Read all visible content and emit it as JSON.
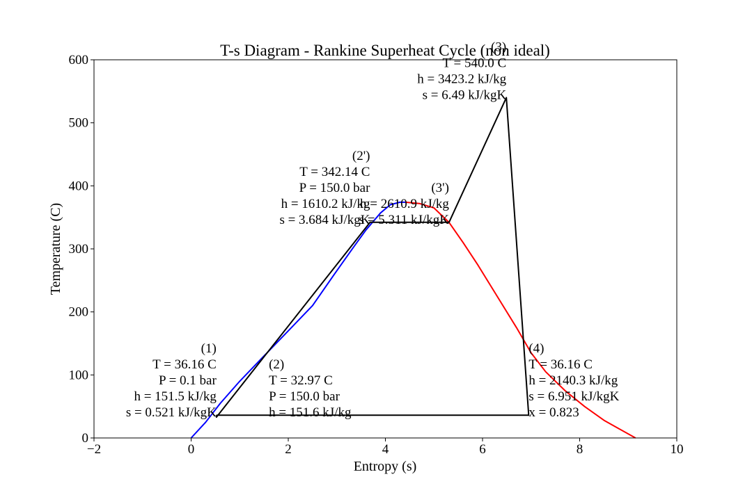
{
  "chart_data": {
    "type": "line",
    "title": "T-s Diagram - Rankine Superheat Cycle (non ideal)",
    "xlabel": "Entropy (s)",
    "ylabel": "Temperature (C)",
    "xlim": [
      -2,
      10
    ],
    "ylim": [
      0,
      600
    ],
    "xticks": [
      -2,
      0,
      2,
      4,
      6,
      8,
      10
    ],
    "yticks": [
      0,
      100,
      200,
      300,
      400,
      500,
      600
    ],
    "grid": false,
    "colors": {
      "liquid": "#0000ff",
      "vapor": "#ff0000",
      "cycle": "#000000"
    },
    "series": [
      {
        "role": "saturated-liquid",
        "color": "#0000ff",
        "points": [
          [
            0.0,
            0
          ],
          [
            0.3,
            25
          ],
          [
            0.6,
            55
          ],
          [
            1.0,
            90
          ],
          [
            1.5,
            130
          ],
          [
            2.0,
            170
          ],
          [
            2.5,
            210
          ],
          [
            2.95,
            260
          ],
          [
            3.3,
            298
          ],
          [
            3.6,
            330
          ],
          [
            3.9,
            357
          ],
          [
            4.1,
            370
          ],
          [
            4.3,
            374
          ],
          [
            4.41,
            374
          ]
        ]
      },
      {
        "role": "saturated-vapor",
        "color": "#ff0000",
        "points": [
          [
            4.41,
            374
          ],
          [
            4.7,
            372
          ],
          [
            5.0,
            365
          ],
          [
            5.311,
            342
          ],
          [
            5.6,
            310
          ],
          [
            5.9,
            275
          ],
          [
            6.3,
            225
          ],
          [
            6.7,
            175
          ],
          [
            7.0,
            135
          ],
          [
            7.3,
            105
          ],
          [
            7.7,
            75
          ],
          [
            8.1,
            50
          ],
          [
            8.5,
            28
          ],
          [
            8.8,
            15
          ],
          [
            9.15,
            0
          ]
        ]
      },
      {
        "role": "cycle",
        "color": "#000000",
        "points": [
          [
            0.521,
            36.16
          ],
          [
            0.521,
            32.97
          ],
          [
            3.684,
            342.14
          ],
          [
            5.311,
            342.14
          ],
          [
            6.49,
            540.0
          ],
          [
            6.951,
            36.16
          ],
          [
            0.521,
            36.16
          ]
        ]
      }
    ],
    "annotations": [
      {
        "id": "state-1",
        "x": 0.521,
        "y": 36.16,
        "align": "right",
        "lines": [
          "(1)",
          "T = 36.16 C",
          "P = 0.1 bar",
          "h = 151.5 kJ/kg",
          "s = 0.521 kJ/kgK"
        ]
      },
      {
        "id": "state-2",
        "x": 1.6,
        "y": 36.16,
        "align": "left",
        "lines": [
          "(2)",
          "T = 32.97 C",
          "P = 150.0 bar",
          "h = 151.6 kJ/kg"
        ]
      },
      {
        "id": "state-2p",
        "x": 3.684,
        "y": 342.14,
        "align": "right",
        "lines": [
          "(2')",
          "T = 342.14 C",
          "P = 150.0 bar",
          "h = 1610.2 kJ/kg",
          "s = 3.684 kJ/kgK"
        ]
      },
      {
        "id": "state-3p",
        "x": 5.311,
        "y": 342.14,
        "align": "right",
        "lines": [
          "(3')",
          "h = 2610.9 kJ/kg",
          "s = 5.311 kJ/kgK"
        ]
      },
      {
        "id": "state-3",
        "x": 6.49,
        "y": 540.0,
        "align": "right",
        "lines": [
          "(3)",
          "T = 540.0 C",
          "h = 3423.2 kJ/kg",
          "s = 6.49 kJ/kgK"
        ]
      },
      {
        "id": "state-4",
        "x": 6.951,
        "y": 36.16,
        "align": "left",
        "lines": [
          "(4)",
          "T = 36.16 C",
          "h = 2140.3 kJ/kg",
          "s = 6.951 kJ/kgK",
          "x = 0.823"
        ]
      }
    ]
  }
}
